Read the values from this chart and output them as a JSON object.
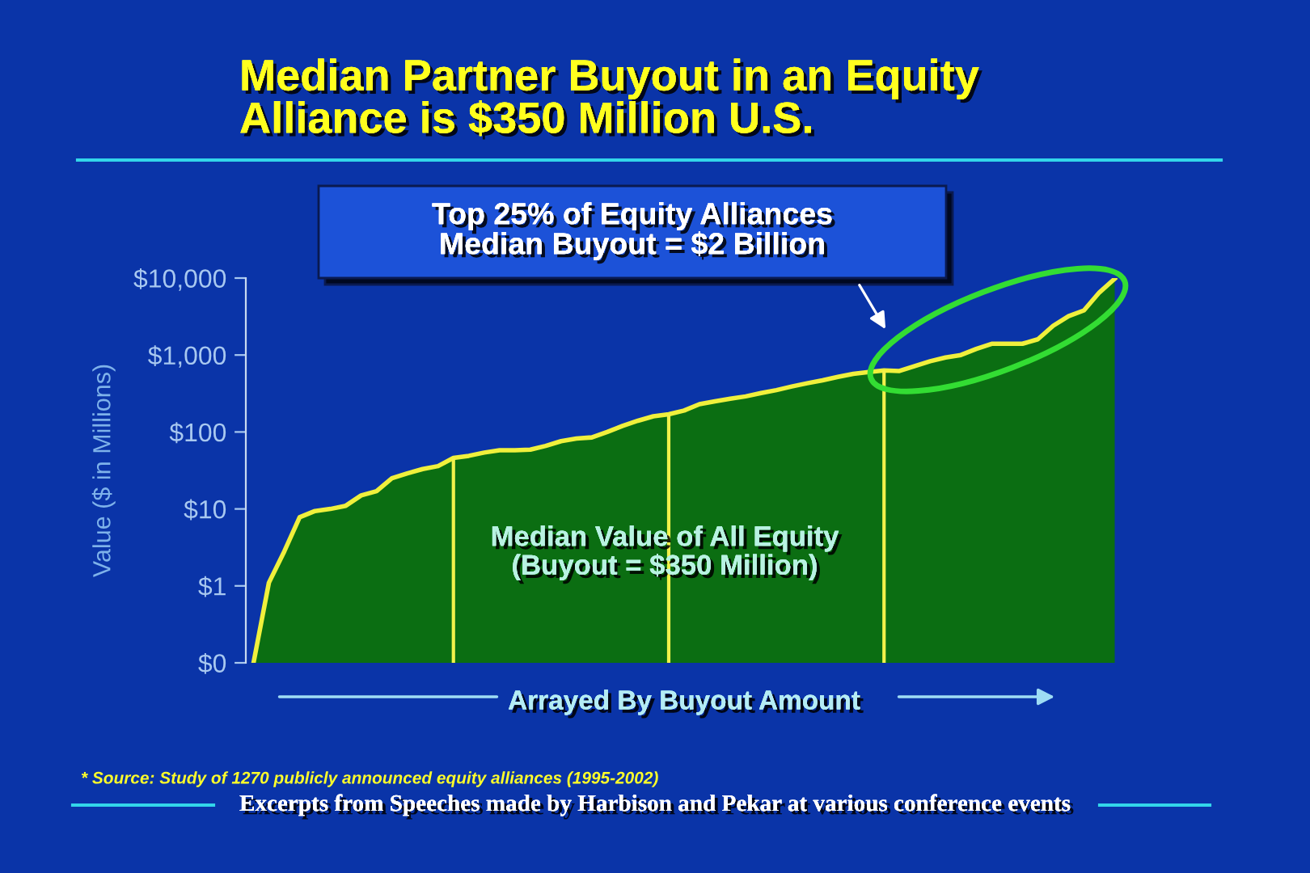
{
  "chart_data": {
    "type": "area",
    "title": "Median Partner Buyout in an Equity\nAlliance is $350 Million U.S.",
    "xlabel": "Arrayed By Buyout Amount",
    "ylabel": "Value ($ in Millions)",
    "annotations": [
      "Top 25% of Equity Alliances\nMedian Buyout = $2 Billion",
      "Median Value of All Equity\n(Buyout = $350 Million)",
      "* Source: Study of 1270 publicly announced equity alliances (1995-2002)",
      "Excerpts from Speeches made by Harbison and Pekar at various conference events"
    ],
    "categories": [
      null,
      null,
      null,
      null,
      null,
      null,
      null,
      null,
      null,
      null,
      null,
      null,
      null,
      null,
      null,
      null,
      null,
      null,
      null,
      null,
      null,
      null,
      null,
      null,
      null,
      null,
      null,
      null,
      null,
      null,
      null,
      null,
      null,
      null,
      null,
      null,
      null,
      null,
      null,
      null,
      null,
      null,
      null,
      null,
      null,
      null,
      null,
      null,
      null,
      null,
      null,
      null,
      null,
      null,
      null,
      null,
      null
    ],
    "series": [
      {
        "color": "#0b6e12",
        "values": [
          0.1,
          1.1,
          2.8,
          7.8,
          9.4,
          10,
          11,
          15,
          17,
          25,
          29,
          33,
          36,
          46,
          49,
          54,
          58,
          58,
          59,
          66,
          76,
          82,
          85,
          100,
          120,
          140,
          160,
          170,
          190,
          230,
          250,
          270,
          290,
          320,
          350,
          390,
          430,
          470,
          520,
          570,
          600,
          630,
          620,
          720,
          830,
          930,
          1000,
          1200,
          1400,
          1400,
          1400,
          1600,
          2400,
          3200,
          3800,
          6500,
          9800
        ]
      },
      {
        "type": "bar",
        "color": "#f2f24a",
        "values": [
          null,
          null,
          null,
          null,
          null,
          null,
          null,
          null,
          null,
          null,
          null,
          null,
          null,
          46,
          null,
          null,
          null,
          null,
          null,
          null,
          null,
          null,
          null,
          null,
          null,
          null,
          null,
          170,
          null,
          null,
          null,
          null,
          null,
          null,
          null,
          null,
          null,
          null,
          null,
          null,
          null,
          630,
          null,
          null,
          null,
          null,
          null,
          null,
          null,
          null,
          null,
          null,
          null,
          null,
          null,
          null,
          null
        ]
      }
    ],
    "log": "y",
    "ylim": [
      0.1,
      10000
    ],
    "yticks": [
      {
        "value": 0.1,
        "label": "$0"
      },
      {
        "value": 1,
        "label": "$1"
      },
      {
        "value": 10,
        "label": "$10"
      },
      {
        "value": 100,
        "label": "$100"
      },
      {
        "value": 1000,
        "label": "$1,000"
      },
      {
        "value": 10000,
        "label": "$10,000"
      }
    ],
    "grid": false,
    "legend": false,
    "tick_labels": "y"
  }
}
